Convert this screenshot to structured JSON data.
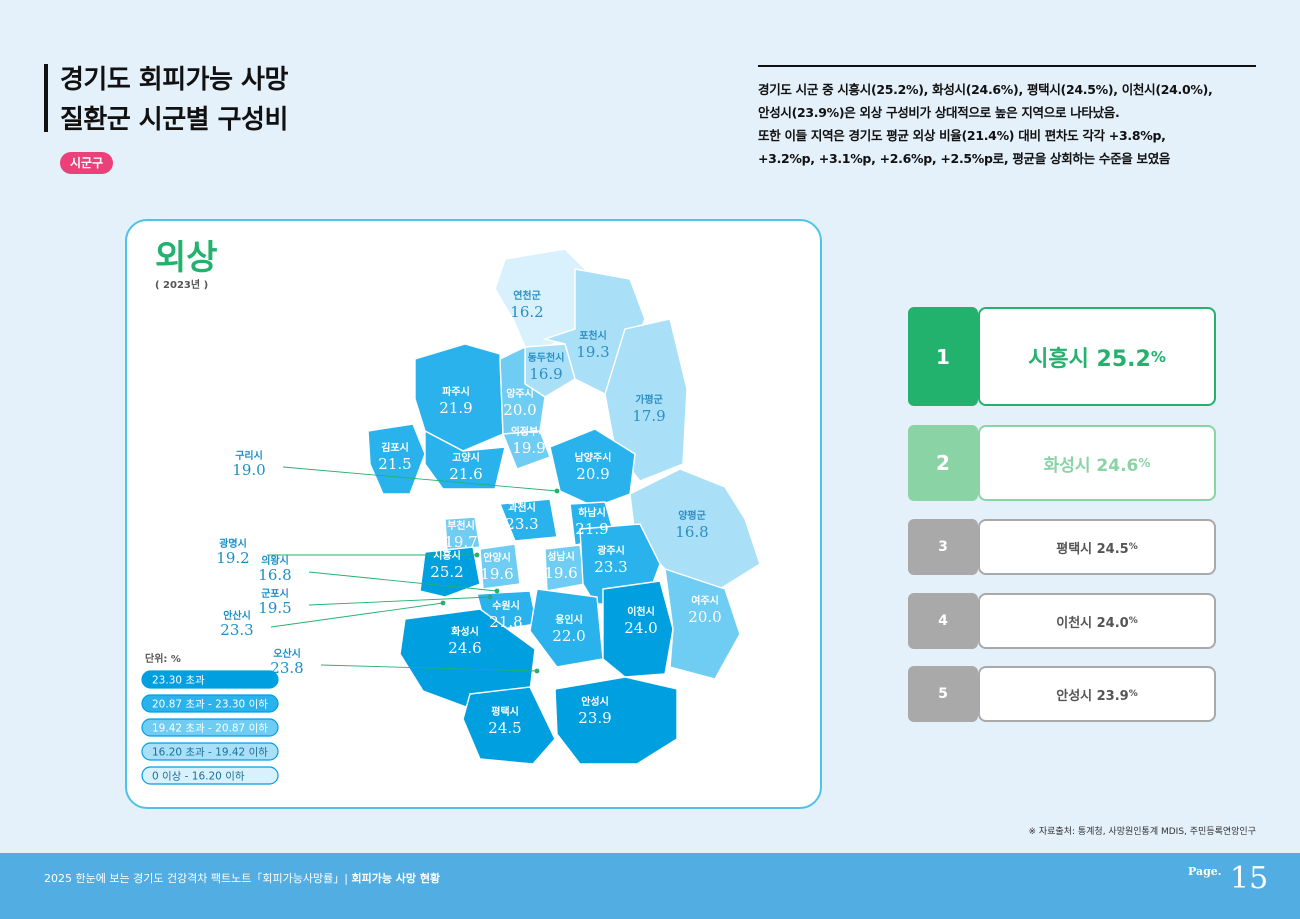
{
  "title": {
    "line1": "경기도 회피가능 사망",
    "line2": "질환군 시군별 구성비"
  },
  "tag": "시군구",
  "description": [
    "경기도 시군 중 시흥시(25.2%), 화성시(24.6%), 평택시(24.5%), 이천시(24.0%),",
    "안성시(23.9%)은 외상 구성비가 상대적으로 높은 지역으로 나타났음.",
    "또한 이들 지역은 경기도 평균 외상 비율(21.4%) 대비 편차도 각각 +3.8%p,",
    "+3.2%p, +3.1%p, +2.6%p, +2.5%p로, 평균을 상회하는 수준을 보였음"
  ],
  "colors": {
    "c1": "#009fe0",
    "c2": "#29b2ec",
    "c3": "#6fccf3",
    "c4": "#a9e0f8",
    "c5": "#d9f1fc",
    "green": "#23b26d",
    "green_light": "#8ad3a4",
    "gray": "#a9a9a9",
    "pink": "#ec407a",
    "footer": "#52ade2"
  },
  "chart_data": {
    "type": "choropleth",
    "title": "외상",
    "subtitle": "( 2023년 )",
    "unit_label": "단위: %",
    "legend": [
      {
        "label": "23.30 초과",
        "color": "c1"
      },
      {
        "label": "20.87 초과 - 23.30 이하",
        "color": "c2"
      },
      {
        "label": "19.42 초과 - 20.87 이하",
        "color": "c3"
      },
      {
        "label": "16.20 초과 - 19.42 이하",
        "color": "c4"
      },
      {
        "label": "0 이상 - 16.20 이하",
        "color": "c5"
      }
    ],
    "regions": [
      {
        "name": "연천군",
        "value": 16.2
      },
      {
        "name": "포천시",
        "value": 19.3
      },
      {
        "name": "동두천시",
        "value": 16.9
      },
      {
        "name": "파주시",
        "value": 21.9
      },
      {
        "name": "양주시",
        "value": 20.0
      },
      {
        "name": "가평군",
        "value": 17.9
      },
      {
        "name": "의정부시",
        "value": 19.9
      },
      {
        "name": "김포시",
        "value": 21.5
      },
      {
        "name": "고양시",
        "value": 21.6
      },
      {
        "name": "남양주시",
        "value": 20.9
      },
      {
        "name": "구리시",
        "value": 19.0
      },
      {
        "name": "과천시",
        "value": 23.3
      },
      {
        "name": "하남시",
        "value": 21.9
      },
      {
        "name": "양평군",
        "value": 16.8
      },
      {
        "name": "부천시",
        "value": 19.7
      },
      {
        "name": "광명시",
        "value": 19.2
      },
      {
        "name": "시흥시",
        "value": 25.2
      },
      {
        "name": "안양시",
        "value": 19.6
      },
      {
        "name": "성남시",
        "value": 19.6
      },
      {
        "name": "광주시",
        "value": 23.3
      },
      {
        "name": "의왕시",
        "value": 16.8
      },
      {
        "name": "군포시",
        "value": 19.5
      },
      {
        "name": "수원시",
        "value": 21.8
      },
      {
        "name": "용인시",
        "value": 22.0
      },
      {
        "name": "이천시",
        "value": 24.0
      },
      {
        "name": "여주시",
        "value": 20.0
      },
      {
        "name": "안산시",
        "value": 23.3
      },
      {
        "name": "화성시",
        "value": 24.6
      },
      {
        "name": "오산시",
        "value": 23.8
      },
      {
        "name": "평택시",
        "value": 24.5
      },
      {
        "name": "안성시",
        "value": 23.9
      }
    ]
  },
  "ranking": [
    {
      "rank": "1",
      "label": "시흥시 25.2",
      "unit": "%"
    },
    {
      "rank": "2",
      "label": "화성시 24.6",
      "unit": "%"
    },
    {
      "rank": "3",
      "label": "평택시 24.5",
      "unit": "%"
    },
    {
      "rank": "4",
      "label": "이천시 24.0",
      "unit": "%"
    },
    {
      "rank": "5",
      "label": "안성시 23.9",
      "unit": "%"
    }
  ],
  "source": "※ 자료출처: 통계청, 사망원인통계 MDIS, 주민등록연앙인구",
  "footer": {
    "text": "2025 한눈에 보는 경기도 건강격차 팩트노트「회피가능사망률」|",
    "bold": "회피가능 사망 현황",
    "page_label": "Page.",
    "page_num": "15"
  }
}
